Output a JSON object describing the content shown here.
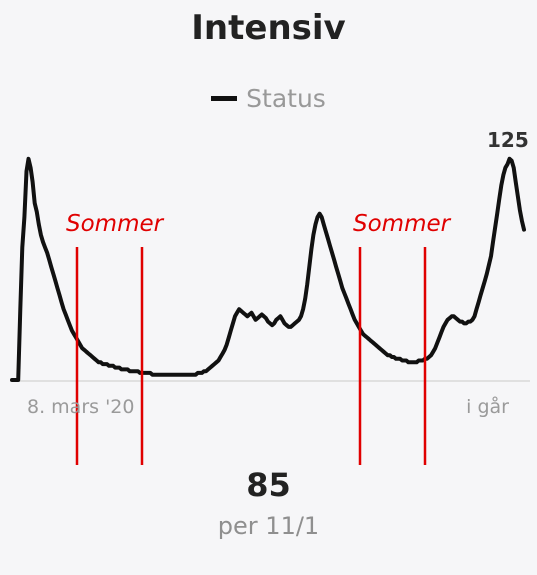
{
  "header": {
    "title": "Intensiv"
  },
  "legend": {
    "label": "Status",
    "color": "#111111"
  },
  "chart_data": {
    "type": "line",
    "series": [
      {
        "name": "Status",
        "color": "#111111",
        "values": [
          0,
          0,
          0,
          0,
          40,
          75,
          92,
          118,
          125,
          120,
          112,
          100,
          95,
          88,
          82,
          78,
          75,
          72,
          68,
          64,
          60,
          56,
          52,
          48,
          44,
          40,
          37,
          34,
          31,
          28,
          26,
          24,
          22,
          20,
          18,
          17,
          16,
          15,
          14,
          13,
          12,
          11,
          10,
          10,
          9,
          9,
          9,
          8,
          8,
          8,
          7,
          7,
          7,
          6,
          6,
          6,
          6,
          5,
          5,
          5,
          5,
          5,
          4,
          4,
          4,
          4,
          4,
          4,
          3,
          3,
          3,
          3,
          3,
          3,
          3,
          3,
          3,
          3,
          3,
          3,
          3,
          3,
          3,
          3,
          3,
          3,
          3,
          3,
          3,
          3,
          4,
          4,
          4,
          5,
          5,
          6,
          7,
          8,
          9,
          10,
          11,
          13,
          15,
          17,
          20,
          24,
          28,
          32,
          36,
          38,
          40,
          39,
          38,
          37,
          36,
          37,
          38,
          36,
          34,
          35,
          36,
          37,
          36,
          35,
          33,
          32,
          31,
          32,
          34,
          35,
          36,
          34,
          32,
          31,
          30,
          30,
          31,
          32,
          33,
          34,
          36,
          40,
          46,
          54,
          64,
          74,
          82,
          88,
          92,
          94,
          92,
          88,
          84,
          80,
          76,
          72,
          68,
          64,
          60,
          56,
          52,
          49,
          46,
          43,
          40,
          37,
          34,
          32,
          30,
          28,
          26,
          25,
          24,
          23,
          22,
          21,
          20,
          19,
          18,
          17,
          16,
          15,
          14,
          14,
          13,
          13,
          12,
          12,
          12,
          11,
          11,
          11,
          10,
          10,
          10,
          10,
          10,
          11,
          11,
          11,
          12,
          12,
          13,
          14,
          16,
          18,
          21,
          24,
          27,
          30,
          32,
          34,
          35,
          36,
          36,
          35,
          34,
          33,
          33,
          32,
          32,
          33,
          33,
          34,
          36,
          40,
          44,
          48,
          52,
          56,
          60,
          65,
          70,
          78,
          86,
          94,
          102,
          110,
          116,
          120,
          122,
          125,
          124,
          120,
          112,
          104,
          96,
          90,
          85
        ]
      }
    ],
    "x_tick_labels": [
      "8. mars '20",
      "i går"
    ],
    "ylim": [
      0,
      130
    ],
    "grid": false,
    "legend_position": "top-center",
    "annotations": [
      {
        "label": "Sommer",
        "color": "#e00000"
      },
      {
        "label": "Sommer",
        "color": "#e00000"
      }
    ],
    "peak_value_label": "125"
  },
  "summary": {
    "value": "85",
    "date": "per 11/1"
  }
}
